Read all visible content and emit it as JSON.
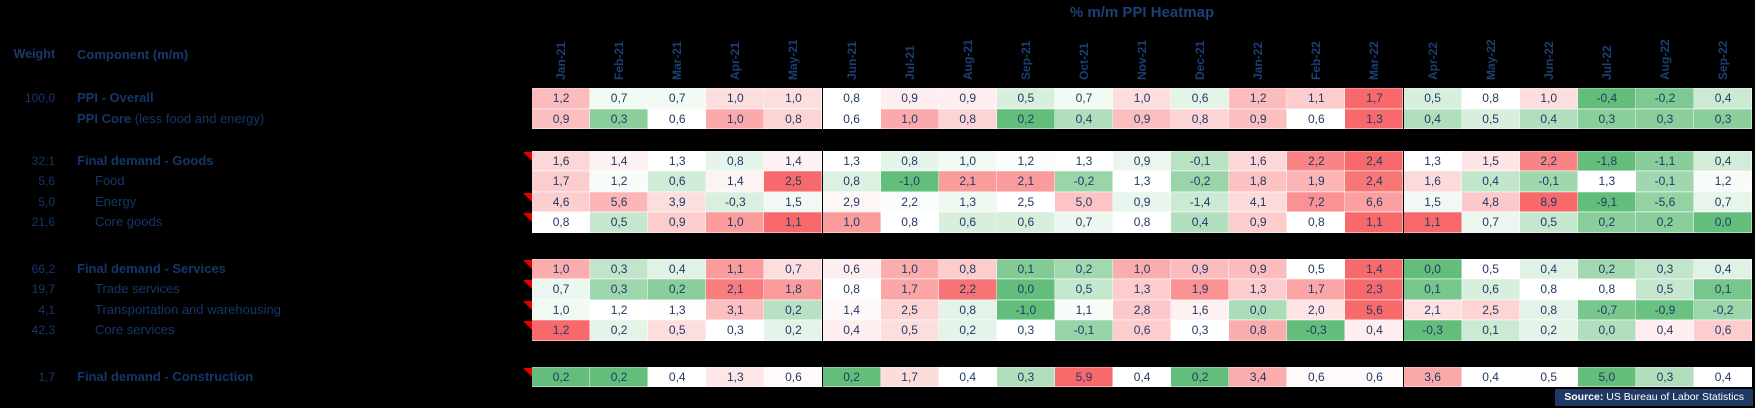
{
  "title": "% m/m PPI Heatmap",
  "header": {
    "weight": "Weight",
    "component": "Component (m/m)"
  },
  "source": {
    "label": "Source:",
    "text": " US Bureau of Labor Statistics"
  },
  "colors": {
    "scale_low_green": "#63BE7B",
    "scale_mid_white": "#FFFFFF",
    "scale_high_red": "#F8696B",
    "navy_text": "#17396B",
    "source_bar_bg": "#1F3864",
    "marker_red": "#E50000",
    "background": "#000000"
  },
  "chart_data": {
    "type": "heatmap",
    "title": "% m/m PPI Heatmap",
    "value_format": "decimal-comma, one decimal, % m/m",
    "color_rule": "per-row 3-color scale: row min = green, row median = white, row max = red",
    "legend_position": "none",
    "columns": [
      "Jan-21",
      "Feb-21",
      "Mar-21",
      "Apr-21",
      "May-21",
      "Jun-21",
      "Jul-21",
      "Aug-21",
      "Sep-21",
      "Oct-21",
      "Nov-21",
      "Dec-21",
      "Jan-22",
      "Feb-22",
      "Mar-22",
      "Apr-22",
      "May-22",
      "Jun-22",
      "Jul-22",
      "Aug-22",
      "Sep-22"
    ],
    "rows": [
      {
        "weight": "100,0",
        "label": "PPI - Overall",
        "suffix": "",
        "bold": true,
        "indent": false,
        "marker": false,
        "values": [
          1.2,
          0.7,
          0.7,
          1.0,
          1.0,
          0.8,
          0.9,
          0.9,
          0.5,
          0.7,
          1.0,
          0.6,
          1.2,
          1.1,
          1.7,
          0.5,
          0.8,
          1.0,
          -0.4,
          -0.2,
          0.4
        ]
      },
      {
        "weight": "",
        "label": "PPI Core",
        "suffix": " (less food and energy)",
        "bold": true,
        "indent": false,
        "marker": false,
        "values": [
          0.9,
          0.3,
          0.6,
          1.0,
          0.8,
          0.6,
          1.0,
          0.8,
          0.2,
          0.4,
          0.9,
          0.8,
          0.9,
          0.6,
          1.3,
          0.4,
          0.5,
          0.4,
          0.3,
          0.3,
          0.3
        ]
      },
      {
        "weight": "32,1",
        "label": "Final demand - Goods",
        "suffix": "",
        "bold": true,
        "indent": false,
        "marker": true,
        "values": [
          1.6,
          1.4,
          1.3,
          0.8,
          1.4,
          1.3,
          0.8,
          1.0,
          1.2,
          1.3,
          0.9,
          -0.1,
          1.6,
          2.2,
          2.4,
          1.3,
          1.5,
          2.2,
          -1.8,
          -1.1,
          0.4
        ]
      },
      {
        "weight": "5,6",
        "label": "Food",
        "suffix": "",
        "bold": false,
        "indent": true,
        "marker": false,
        "values": [
          1.7,
          1.2,
          0.6,
          1.4,
          2.5,
          0.8,
          -1.0,
          2.1,
          2.1,
          -0.2,
          1.3,
          -0.2,
          1.8,
          1.9,
          2.4,
          1.6,
          0.4,
          -0.1,
          1.3,
          -0.1,
          1.2
        ]
      },
      {
        "weight": "5,0",
        "label": "Energy",
        "suffix": "",
        "bold": false,
        "indent": true,
        "marker": true,
        "values": [
          4.6,
          5.6,
          3.9,
          -0.3,
          1.5,
          2.9,
          2.2,
          1.3,
          2.5,
          5.0,
          0.9,
          -1.4,
          4.1,
          7.2,
          6.6,
          1.5,
          4.8,
          8.9,
          -9.1,
          -5.6,
          0.7
        ]
      },
      {
        "weight": "21,6",
        "label": "Core goods",
        "suffix": "",
        "bold": false,
        "indent": true,
        "marker": true,
        "values": [
          0.8,
          0.5,
          0.9,
          1.0,
          1.1,
          1.0,
          0.8,
          0.6,
          0.6,
          0.7,
          0.8,
          0.4,
          0.9,
          0.8,
          1.1,
          1.1,
          0.7,
          0.5,
          0.2,
          0.2,
          0.0
        ]
      },
      {
        "weight": "66,2",
        "label": "Final demand - Services",
        "suffix": "",
        "bold": true,
        "indent": false,
        "marker": true,
        "values": [
          1.0,
          0.3,
          0.4,
          1.1,
          0.7,
          0.6,
          1.0,
          0.8,
          0.1,
          0.2,
          1.0,
          0.9,
          0.9,
          0.5,
          1.4,
          0.0,
          0.5,
          0.4,
          0.2,
          0.3,
          0.4
        ]
      },
      {
        "weight": "19,7",
        "label": "Trade services",
        "suffix": "",
        "bold": false,
        "indent": true,
        "marker": true,
        "values": [
          0.7,
          0.3,
          0.2,
          2.1,
          1.8,
          0.8,
          1.7,
          2.2,
          0.0,
          0.5,
          1.3,
          1.9,
          1.3,
          1.7,
          2.3,
          0.1,
          0.6,
          0.8,
          0.8,
          0.5,
          0.1
        ]
      },
      {
        "weight": "4,1",
        "label": "Transportation and warehousing",
        "suffix": "",
        "bold": false,
        "indent": true,
        "marker": true,
        "values": [
          1.0,
          1.2,
          1.3,
          3.1,
          0.2,
          1.4,
          2.5,
          0.8,
          -1.0,
          1.1,
          2.8,
          1.6,
          0.0,
          2.0,
          5.6,
          2.1,
          2.5,
          0.8,
          -0.7,
          -0.9,
          -0.2
        ]
      },
      {
        "weight": "42,3",
        "label": "Core services",
        "suffix": "",
        "bold": false,
        "indent": true,
        "marker": true,
        "values": [
          1.2,
          0.2,
          0.5,
          0.3,
          0.2,
          0.4,
          0.5,
          0.2,
          0.3,
          -0.1,
          0.6,
          0.3,
          0.8,
          -0.3,
          0.4,
          -0.3,
          0.1,
          0.2,
          0.0,
          0.4,
          0.6
        ]
      },
      {
        "weight": "1,7",
        "label": "Final demand - Construction",
        "suffix": "",
        "bold": true,
        "indent": false,
        "marker": true,
        "values": [
          0.2,
          0.2,
          0.4,
          1.3,
          0.6,
          0.2,
          1.7,
          0.4,
          0.3,
          5.9,
          0.4,
          0.2,
          3.4,
          0.6,
          0.6,
          3.6,
          0.4,
          0.5,
          5.0,
          0.3,
          0.4
        ]
      }
    ],
    "cell_color_overrides": [
      {
        "row": 10,
        "col": 18,
        "color": "#63BE7B"
      }
    ]
  }
}
